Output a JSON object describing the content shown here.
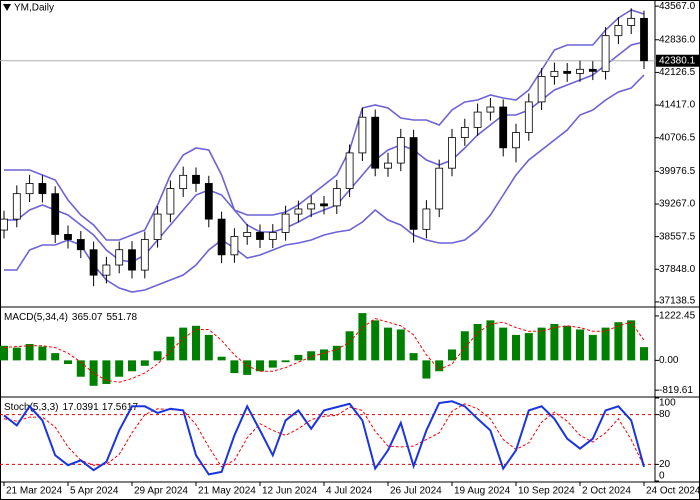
{
  "chart_data": [
    {
      "type": "candlestick",
      "title": "YM,Daily",
      "categories": [
        "21 Mar 2024",
        null,
        null,
        null,
        null,
        "5 Apr 2024",
        null,
        null,
        null,
        null,
        "29 Apr 2024",
        null,
        null,
        null,
        null,
        "21 May 2024",
        null,
        null,
        null,
        null,
        "12 Jun 2024",
        null,
        null,
        null,
        null,
        "4 Jul 2024",
        null,
        null,
        null,
        null,
        "26 Jul 2024",
        null,
        null,
        null,
        null,
        "19 Aug 2024",
        null,
        null,
        null,
        null,
        "10 Sep 2024",
        null,
        null,
        null,
        null,
        "2 Oct 2024",
        null,
        null,
        null,
        null,
        "24 Oct 2024"
      ],
      "open": [
        38700,
        38938,
        39491,
        39713,
        39491,
        38605,
        38495,
        38273,
        37720,
        37941,
        38273,
        37830,
        38495,
        39048,
        39602,
        39890,
        39713,
        38938,
        38162,
        38561,
        38649,
        38495,
        38649,
        39048,
        39159,
        39270,
        39226,
        39602,
        40377,
        41153,
        40045,
        40156,
        40710,
        38716,
        39159,
        40045,
        40710,
        40931,
        41264,
        41374,
        40488,
        40820,
        41485,
        42039,
        42149,
        42105,
        42194,
        42149,
        42925,
        43146,
        43301
      ],
      "high": [
        39120,
        39670,
        39900,
        39890,
        39650,
        38800,
        38680,
        38450,
        38120,
        38450,
        38460,
        38670,
        39220,
        39780,
        40080,
        40060,
        39880,
        39100,
        38740,
        38830,
        38820,
        38830,
        39230,
        39340,
        39450,
        39440,
        39790,
        40560,
        41360,
        41320,
        40380,
        40900,
        40880,
        39350,
        40230,
        40900,
        41120,
        41450,
        41570,
        41540,
        41010,
        41670,
        42220,
        42340,
        42330,
        42380,
        42370,
        43110,
        43330,
        43520,
        43470
      ],
      "low": [
        38520,
        38760,
        39310,
        39300,
        38420,
        38300,
        38090,
        37480,
        37540,
        37760,
        37650,
        37650,
        38320,
        38870,
        39420,
        39530,
        38760,
        37980,
        37990,
        38380,
        38310,
        38310,
        38470,
        38870,
        38980,
        39040,
        39050,
        39420,
        40200,
        39870,
        39860,
        39980,
        38430,
        38520,
        38980,
        39870,
        40530,
        40750,
        41080,
        40300,
        40170,
        40640,
        41310,
        41860,
        41920,
        41920,
        41960,
        41970,
        42740,
        42960,
        42200
      ],
      "close": [
        38938,
        39491,
        39713,
        39491,
        38605,
        38495,
        38273,
        37720,
        37941,
        38273,
        37830,
        38495,
        39048,
        39602,
        39890,
        39713,
        38938,
        38162,
        38561,
        38649,
        38495,
        38649,
        39048,
        39159,
        39270,
        39226,
        39602,
        40377,
        41153,
        40045,
        40156,
        40710,
        38716,
        39159,
        40045,
        40710,
        40931,
        41264,
        41374,
        40488,
        40820,
        41485,
        42039,
        42149,
        42105,
        42194,
        42149,
        42925,
        43146,
        43301,
        42380
      ],
      "upper": [
        40006,
        40006,
        40006,
        39897,
        39789,
        39354,
        39028,
        38811,
        38485,
        38485,
        38594,
        38702,
        39245,
        39897,
        40332,
        40484,
        40441,
        39897,
        39137,
        39028,
        39028,
        39028,
        39093,
        39245,
        39463,
        39680,
        39897,
        40441,
        41353,
        41418,
        41353,
        41136,
        41092,
        41092,
        40984,
        41310,
        41483,
        41527,
        41636,
        41570,
        41527,
        41744,
        42179,
        42614,
        42722,
        42722,
        42722,
        43048,
        43309,
        43483,
        43396
      ],
      "middle": [
        38919,
        38919,
        39137,
        39245,
        39137,
        39028,
        38811,
        38594,
        38268,
        38050,
        38007,
        38159,
        38485,
        38811,
        39137,
        39463,
        39571,
        39463,
        39137,
        38811,
        38659,
        38659,
        38746,
        38876,
        39028,
        39137,
        39245,
        39571,
        39897,
        40223,
        40441,
        40549,
        40441,
        40223,
        40115,
        40223,
        40484,
        40767,
        40984,
        41201,
        41201,
        41310,
        41527,
        41744,
        41853,
        41962,
        42070,
        42288,
        42505,
        42722,
        42787
      ],
      "lower": [
        37833,
        37833,
        38268,
        38376,
        38376,
        38485,
        38376,
        37942,
        37616,
        37442,
        37355,
        37398,
        37507,
        37616,
        37724,
        37942,
        38268,
        38485,
        38311,
        38094,
        38159,
        38268,
        38376,
        38420,
        38485,
        38594,
        38659,
        38702,
        38876,
        39137,
        38919,
        38811,
        38594,
        38485,
        38420,
        38420,
        38485,
        38702,
        39028,
        39463,
        39897,
        40223,
        40441,
        40658,
        40875,
        41201,
        41310,
        41527,
        41701,
        41788,
        42070
      ],
      "band_color": "#6b63d6",
      "up_color": "#ffffff",
      "down_color": "#000000",
      "last_price": 42380.1,
      "ylim": [
        37050,
        43700
      ],
      "yticks": [
        {
          "value": 43567,
          "label": "43567.0"
        },
        {
          "value": 42836,
          "label": "42836.0"
        },
        42126.5,
        {
          "value": 41417,
          "label": "41417.0"
        },
        40706.5,
        39976.5,
        {
          "value": 39267,
          "label": "39267.0"
        },
        38557.5,
        {
          "value": 37848,
          "label": "37848.0"
        },
        37138.5
      ]
    },
    {
      "type": "bar",
      "title": "MACD(5,34,4)",
      "series": [
        {
          "color": "#008000",
          "values": [
            400,
            350,
            450,
            380,
            200,
            -100,
            -450,
            -700,
            -650,
            -450,
            -300,
            -150,
            250,
            650,
            900,
            950,
            700,
            100,
            -350,
            -400,
            -300,
            -200,
            -50,
            150,
            250,
            300,
            400,
            800,
            1300,
            1100,
            900,
            850,
            200,
            -500,
            -300,
            300,
            800,
            1000,
            1100,
            900,
            700,
            750,
            900,
            1000,
            950,
            850,
            700,
            900,
            1050,
            1100,
            365.07
          ]
        },
        {
          "color": "#ff0000",
          "dash": true,
          "values": [
            350,
            380,
            400,
            400,
            350,
            200,
            -50,
            -350,
            -550,
            -600,
            -500,
            -350,
            -100,
            250,
            600,
            850,
            850,
            550,
            150,
            -150,
            -300,
            -300,
            -200,
            -50,
            100,
            200,
            300,
            500,
            900,
            1150,
            1050,
            950,
            700,
            150,
            -250,
            -100,
            350,
            750,
            1000,
            1050,
            900,
            800,
            800,
            900,
            950,
            900,
            800,
            800,
            950,
            1050,
            551.78
          ]
        }
      ],
      "ylim": [
        -980,
        1440
      ],
      "yticks": [
        1222.45,
        {
          "value": 0,
          "label": "0.00"
        },
        -819.61
      ]
    },
    {
      "type": "line",
      "title": "Stoch(5,3,3)",
      "series": [
        {
          "color": "#1a35e0",
          "values": [
            79,
            67,
            90,
            73,
            31,
            19,
            25,
            13,
            23,
            61,
            90,
            90,
            82,
            87,
            85,
            31,
            8,
            11,
            55,
            90,
            61,
            31,
            73,
            85,
            63,
            85,
            89,
            93,
            73,
            15,
            37,
            70,
            18,
            61,
            94,
            96,
            90,
            75,
            61,
            15,
            37,
            85,
            90,
            75,
            51,
            39,
            51,
            85,
            90,
            73,
            17.0391
          ]
        },
        {
          "color": "#ff0000",
          "dash": true,
          "values": [
            75,
            72,
            77,
            77,
            65,
            41,
            25,
            19,
            20,
            32,
            58,
            80,
            87,
            86,
            85,
            68,
            41,
            17,
            25,
            52,
            69,
            61,
            55,
            63,
            74,
            78,
            79,
            89,
            85,
            60,
            42,
            41,
            42,
            50,
            58,
            84,
            93,
            87,
            75,
            50,
            38,
            46,
            71,
            83,
            72,
            55,
            47,
            58,
            75,
            50,
            17.5617
          ]
        }
      ],
      "levels": [
        80,
        20
      ],
      "level_color": "#e00000",
      "ylim": [
        0,
        100
      ],
      "yticks": [
        100,
        80,
        20,
        0
      ]
    }
  ]
}
